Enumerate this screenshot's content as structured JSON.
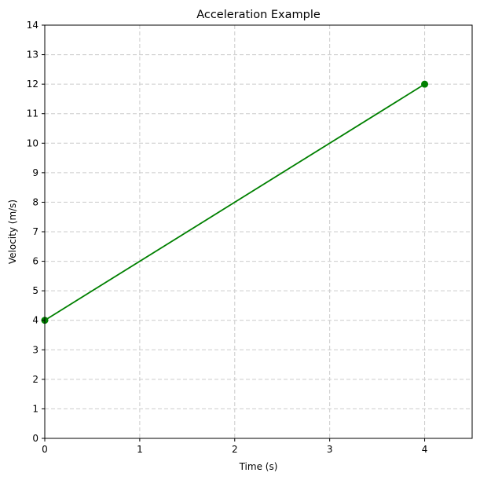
{
  "chart_data": {
    "type": "line",
    "title": "Acceleration Example",
    "xlabel": "Time (s)",
    "ylabel": "Velocity (m/s)",
    "xlim": [
      0,
      4.5
    ],
    "ylim": [
      0,
      14
    ],
    "xticks": [
      0,
      1,
      2,
      3,
      4
    ],
    "yticks": [
      0,
      1,
      2,
      3,
      4,
      5,
      6,
      7,
      8,
      9,
      10,
      11,
      12,
      13,
      14
    ],
    "grid": true,
    "series": [
      {
        "color": "#008000",
        "markers": true,
        "points": [
          {
            "x": 0,
            "y": 4
          },
          {
            "x": 4,
            "y": 12
          }
        ]
      }
    ]
  }
}
